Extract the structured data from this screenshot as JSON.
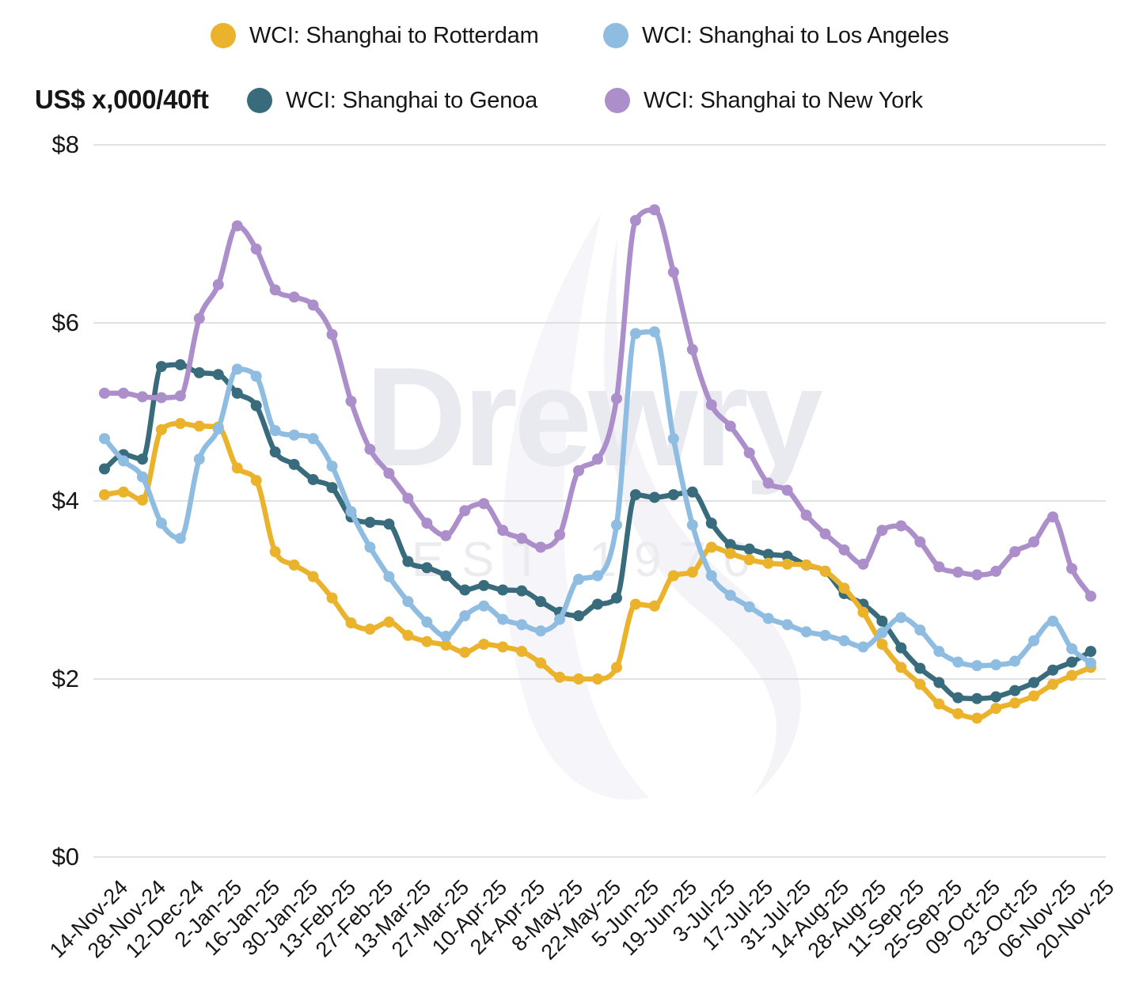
{
  "units_label": "US$ x,000/40ft",
  "watermark": {
    "brand": "Drewry",
    "subtitle": "EST 1970"
  },
  "legend": [
    {
      "id": "rotterdam",
      "label": "WCI: Shanghai to Rotterdam",
      "color": "#EBB32C"
    },
    {
      "id": "la",
      "label": "WCI: Shanghai to Los Angeles",
      "color": "#8FBCE1"
    },
    {
      "id": "genoa",
      "label": "WCI: Shanghai to Genoa",
      "color": "#386B7C"
    },
    {
      "id": "ny",
      "label": "WCI: Shanghai to New York",
      "color": "#AC8ECB"
    }
  ],
  "chart_data": {
    "type": "line",
    "title": "",
    "ylabel": "US$ x,000/40ft",
    "ylim": [
      0,
      8
    ],
    "grid": "horizontal",
    "legend_position": "top",
    "markers": true,
    "y_ticks": [
      {
        "label": "$8",
        "value": 8
      },
      {
        "label": "$6",
        "value": 6
      },
      {
        "label": "$4",
        "value": 4
      },
      {
        "label": "$2",
        "value": 2
      },
      {
        "label": "$0",
        "value": 0
      }
    ],
    "x_label_every": 2,
    "x_labels": [
      "14-Nov-24",
      "28-Nov-24",
      "12-Dec-24",
      "2-Jan-25",
      "16-Jan-25",
      "30-Jan-25",
      "13-Feb-25",
      "27-Feb-25",
      "13-Mar-25",
      "27-Mar-25",
      "10-Apr-25",
      "24-Apr-25",
      "8-May-25",
      "22-May-25",
      "5-Jun-25",
      "19-Jun-25",
      "3-Jul-25",
      "17-Jul-25",
      "31-Jul-25",
      "14-Aug-25",
      "28-Aug-25",
      "11-Sep-25",
      "25-Sep-25",
      "09-Oct-25",
      "23-Oct-25",
      "06-Nov-25",
      "20-Nov-25"
    ],
    "series": [
      {
        "name": "WCI: Shanghai to Rotterdam",
        "color": "#EBB32C",
        "values": [
          4.07,
          4.1,
          4.01,
          4.8,
          4.87,
          4.84,
          4.83,
          4.37,
          4.23,
          3.43,
          3.28,
          3.15,
          2.91,
          2.63,
          2.56,
          2.64,
          2.49,
          2.42,
          2.38,
          2.3,
          2.39,
          2.36,
          2.31,
          2.18,
          2.02,
          2.0,
          2.0,
          2.13,
          2.84,
          2.82,
          3.16,
          3.2,
          3.48,
          3.41,
          3.34,
          3.3,
          3.29,
          3.28,
          3.21,
          3.02,
          2.75,
          2.39,
          2.13,
          1.94,
          1.72,
          1.61,
          1.56,
          1.67,
          1.73,
          1.81,
          1.94,
          2.04,
          2.13
        ]
      },
      {
        "name": "WCI: Shanghai to Los Angeles",
        "color": "#8FBCE1",
        "values": [
          4.7,
          4.45,
          4.27,
          3.75,
          3.58,
          4.47,
          4.81,
          5.48,
          5.4,
          4.79,
          4.74,
          4.7,
          4.39,
          3.88,
          3.48,
          3.15,
          2.87,
          2.64,
          2.48,
          2.71,
          2.82,
          2.67,
          2.61,
          2.54,
          2.67,
          3.12,
          3.16,
          3.73,
          5.88,
          5.9,
          4.7,
          3.73,
          3.16,
          2.94,
          2.81,
          2.68,
          2.61,
          2.53,
          2.49,
          2.43,
          2.36,
          2.52,
          2.69,
          2.55,
          2.31,
          2.19,
          2.15,
          2.16,
          2.2,
          2.43,
          2.65,
          2.34,
          2.18
        ]
      },
      {
        "name": "WCI: Shanghai to Genoa",
        "color": "#386B7C",
        "values": [
          4.36,
          4.52,
          4.47,
          5.51,
          5.53,
          5.44,
          5.42,
          5.21,
          5.07,
          4.55,
          4.41,
          4.24,
          4.15,
          3.82,
          3.76,
          3.74,
          3.32,
          3.25,
          3.16,
          3.0,
          3.05,
          3.0,
          2.99,
          2.87,
          2.75,
          2.71,
          2.84,
          2.91,
          4.07,
          4.04,
          4.07,
          4.1,
          3.75,
          3.51,
          3.46,
          3.4,
          3.38,
          3.28,
          3.21,
          2.96,
          2.84,
          2.65,
          2.35,
          2.12,
          1.96,
          1.79,
          1.78,
          1.8,
          1.87,
          1.96,
          2.1,
          2.19,
          2.31
        ]
      },
      {
        "name": "WCI: Shanghai to New York",
        "color": "#AC8ECB",
        "values": [
          5.21,
          5.21,
          5.17,
          5.16,
          5.18,
          6.05,
          6.43,
          7.09,
          6.83,
          6.37,
          6.29,
          6.2,
          5.87,
          5.12,
          4.58,
          4.31,
          4.03,
          3.75,
          3.61,
          3.89,
          3.97,
          3.67,
          3.58,
          3.48,
          3.62,
          4.34,
          4.47,
          5.15,
          7.15,
          7.27,
          6.57,
          5.7,
          5.08,
          4.84,
          4.54,
          4.2,
          4.12,
          3.84,
          3.63,
          3.45,
          3.29,
          3.67,
          3.72,
          3.54,
          3.26,
          3.2,
          3.17,
          3.21,
          3.43,
          3.54,
          3.82,
          3.24,
          2.93
        ]
      }
    ]
  }
}
